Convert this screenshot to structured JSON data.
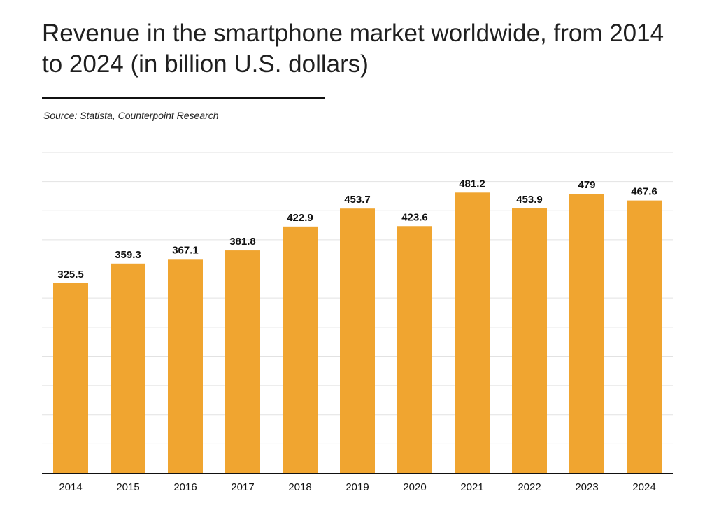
{
  "title": "Revenue in the smartphone market worldwide, from 2014 to 2024 (in billion U.S. dollars)",
  "source": "Source: Statista, Counterpoint Research",
  "colors": {
    "bar": "#F0A530",
    "grid": "#e2e2e2",
    "axis": "#111111",
    "text": "#111111"
  },
  "chart_data": {
    "type": "bar",
    "title": "Revenue in the smartphone market worldwide, from 2014 to 2024 (in billion U.S. dollars)",
    "xlabel": "",
    "ylabel": "",
    "categories": [
      "2014",
      "2015",
      "2016",
      "2017",
      "2018",
      "2019",
      "2020",
      "2021",
      "2022",
      "2023",
      "2024"
    ],
    "values": [
      325.5,
      359.3,
      367.1,
      381.8,
      422.9,
      453.7,
      423.6,
      481.2,
      453.9,
      479,
      467.6
    ],
    "data_labels": [
      "325.5",
      "359.3",
      "367.1",
      "381.8",
      "422.9",
      "453.7",
      "423.6",
      "481.2",
      "453.9",
      "479",
      "467.6"
    ],
    "ylim": [
      0,
      550
    ],
    "grid": true,
    "y_ticks_visible": false
  }
}
